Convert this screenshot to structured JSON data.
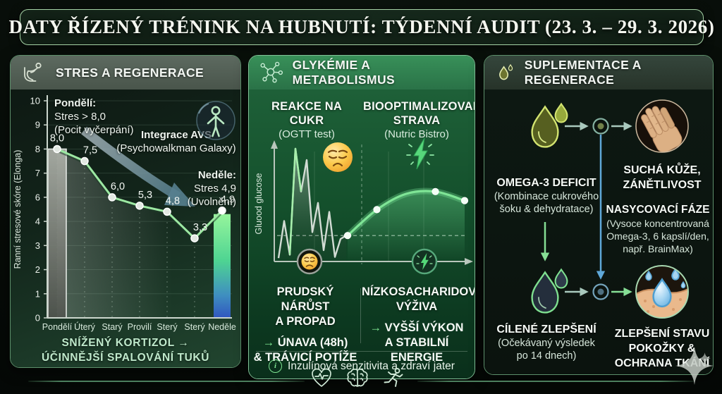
{
  "title": "DATY ŘÍZENÝ TRÉNINK NA HUBNUTÍ: TÝDENNÍ AUDIT (23. 3. – 29. 3. 2026)",
  "panels": {
    "stress": {
      "header": "STRES A REGENERACE",
      "monday_note": {
        "title": "Pondělí:",
        "line1": "Stres > 8,0",
        "line2": "(Pocit vyčerpání)"
      },
      "avs_note": {
        "title": "Integrace AVS",
        "line1": "(Psychowalkman Galaxy)"
      },
      "sunday_note": {
        "title": "Neděle:",
        "line1": "Stres 4,9",
        "line2": "(Uvolnění)"
      },
      "footnote1": "SNÍŽENÝ KORTIZOL →",
      "footnote2": "ÚČINNĚJŠÍ SPALOVÁNÍ TUKŮ"
    },
    "glycemia": {
      "header": "GLYKÉMIE A METABOLISMUS",
      "left_title": "REAKCE NA CUKR",
      "left_subtitle": "(OGTT test)",
      "right_title": "BIOOPTIMALIZOVANÁ STRAVA",
      "right_subtitle": "(Nutric Bistro)",
      "left_result": {
        "title1": "PRUDSKÝ NÁRŮST",
        "title2": "A PROPAD",
        "arrow": "→",
        "line1": "ÚNAVA (48h)",
        "line2": "& TRÁVICÍ POTÍŽE"
      },
      "right_result": {
        "title1": "NÍZKOSACHARIDOVÁ",
        "title2": "VÝŽIVA",
        "arrow": "→",
        "line1": "VYŠŠÍ VÝKON",
        "line2": "A STABILNÍ ENERGIE"
      },
      "info_icon": "i",
      "info_note": "Inzulínová senzitivita a zdraví jater"
    },
    "supplementation": {
      "header": "SUPLEMENTACE A REGENERACE",
      "deficit": {
        "title": "OMEGA-3 DEFICIT",
        "sub1": "(Kombinace cukrového",
        "sub2": "šoku & dehydratace)"
      },
      "skin_issue": {
        "line1": "SUCHÁ KŮŽE,",
        "line2": "ZÁNĚTLIVOST"
      },
      "saturation": {
        "title": "NASYCOVACÍ FÁZE",
        "sub1": "(Vysoce koncentrovaná",
        "sub2": "Omega-3, 6 kapslí/den,",
        "sub3": "např. BrainMax)"
      },
      "improvement": {
        "title": "CÍLENÉ ZLEPŠENÍ",
        "sub1": "(Očekávaný výsledek",
        "sub2": "po 14 dnech)"
      },
      "skin_result": {
        "line1": "ZLEPŠENÍ STAVU",
        "line2": "POKOŽKY &",
        "line3": "OCHRANA TKÁNÍ"
      }
    }
  },
  "chart_data": [
    {
      "id": "stress_week",
      "type": "line",
      "title": "STRES A REGENERACE",
      "ylabel": "Ranní stresové skóre (Elonga)",
      "categories": [
        "Pondělí",
        "Úterý",
        "Starý",
        "Provilí",
        "Sterý",
        "Sterý",
        "Neděle"
      ],
      "values": [
        8.0,
        7.5,
        6.0,
        5.3,
        4.8,
        3.3,
        4.9
      ],
      "point_labels": [
        "8,0",
        "7,5",
        "6,0",
        "5,3",
        "4,8",
        "3,3",
        "4,9"
      ],
      "ylim": [
        0,
        10
      ],
      "ytick_labels": [
        "10",
        "9",
        "8",
        "7",
        "6",
        "4",
        "3",
        "2",
        "1",
        "0"
      ],
      "grid": true,
      "bars": [
        {
          "category_index": 0,
          "value": 8.0,
          "style": "gray"
        },
        {
          "category_index": 6,
          "value": 4.9,
          "style": "green-blue-gradient"
        }
      ]
    },
    {
      "id": "glycemia_response",
      "type": "line",
      "ylabel": "Gluood glucose",
      "baseline_pct": 23,
      "series": [
        {
          "name": "REAKCE NA CUKR (OGTT test)",
          "style": "spiky-gray",
          "values_pct": [
            3,
            36,
            6,
            100,
            62,
            90,
            26,
            52,
            10,
            44,
            4,
            20,
            23
          ]
        },
        {
          "name": "BIOOPTIMALIZOVANÁ STRAVA (Nutric Bistro)",
          "style": "smooth-green",
          "values_pct": [
            23,
            46,
            60,
            62,
            54
          ]
        }
      ]
    }
  ]
}
